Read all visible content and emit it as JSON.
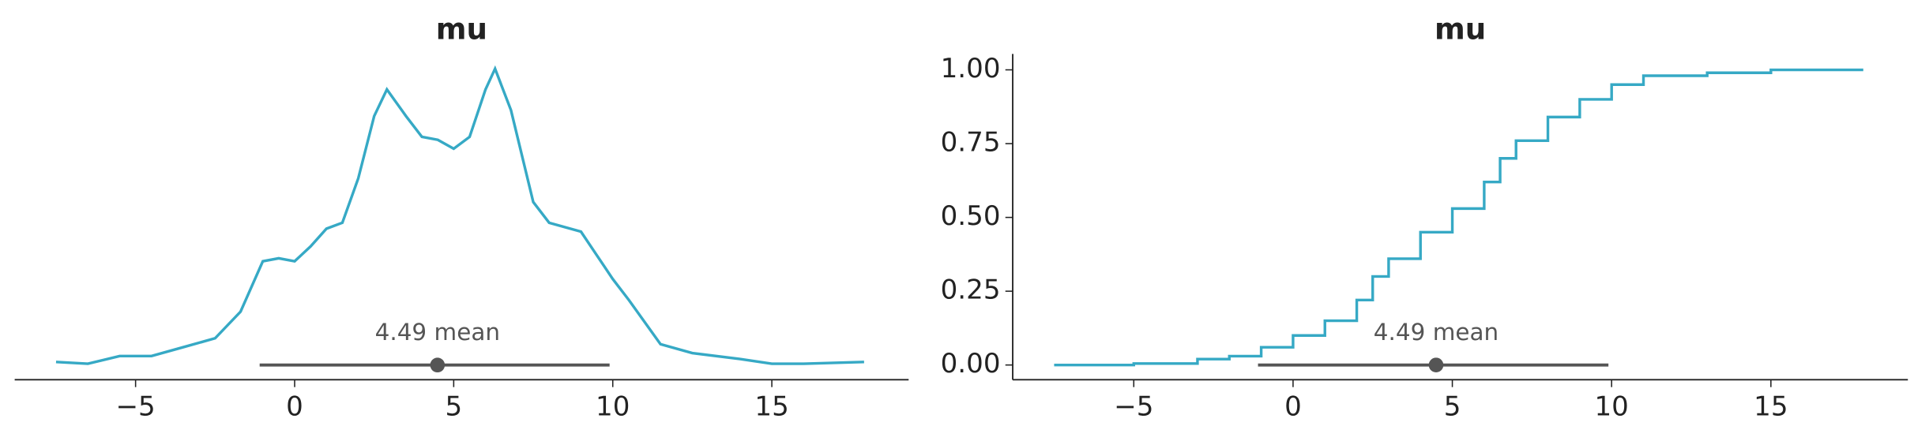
{
  "chart_data": [
    {
      "type": "kde",
      "title": "mu",
      "color": "#36a9c5",
      "x": [
        -7.5,
        -6.5,
        -5.5,
        -4.5,
        -3.5,
        -2.5,
        -1.7,
        -1,
        -0.5,
        0,
        0.5,
        1,
        1.5,
        2,
        2.5,
        2.9,
        3.5,
        4,
        4.5,
        5,
        5.5,
        6,
        6.3,
        6.8,
        7.5,
        8,
        9,
        9.5,
        10,
        10.5,
        11.5,
        12.5,
        14,
        15,
        16,
        17.9
      ],
      "values": [
        0.001,
        0.0004,
        0.003,
        0.003,
        0.006,
        0.009,
        0.018,
        0.035,
        0.036,
        0.035,
        0.04,
        0.046,
        0.048,
        0.063,
        0.084,
        0.093,
        0.084,
        0.077,
        0.076,
        0.073,
        0.077,
        0.093,
        0.1,
        0.086,
        0.055,
        0.048,
        0.045,
        0.037,
        0.029,
        0.022,
        0.007,
        0.004,
        0.002,
        0.0004,
        0.0004,
        0.001
      ],
      "xlim": [
        -8.8,
        19.3
      ],
      "ylim": [
        -0.005,
        0.105
      ],
      "xticks": [
        {
          "value": -5,
          "label": "−5"
        },
        0,
        5,
        10,
        15
      ],
      "point_estimate": {
        "value": 4.49,
        "label": "4.49 mean"
      },
      "hdi": [
        -1.1,
        9.9
      ]
    },
    {
      "type": "ecdf",
      "title": "mu",
      "color": "#36a9c5",
      "x": [
        -7.5,
        -5,
        -3,
        -2,
        -1,
        0,
        1,
        2,
        2.5,
        3,
        4,
        5,
        6,
        6.5,
        7,
        8,
        9,
        10,
        11,
        13,
        15,
        17.9
      ],
      "values": [
        0,
        0.005,
        0.02,
        0.03,
        0.06,
        0.1,
        0.15,
        0.22,
        0.3,
        0.36,
        0.45,
        0.53,
        0.62,
        0.7,
        0.76,
        0.84,
        0.9,
        0.95,
        0.98,
        0.99,
        1.0,
        1.0
      ],
      "xlim": [
        -8.8,
        19.3
      ],
      "ylim": [
        -0.05,
        1.054
      ],
      "xticks": [
        {
          "value": -5,
          "label": "−5"
        },
        0,
        5,
        10,
        15
      ],
      "yticks": [
        {
          "value": 0,
          "label": "0.00"
        },
        {
          "value": 0.25,
          "label": "0.25"
        },
        {
          "value": 0.5,
          "label": "0.50"
        },
        {
          "value": 0.75,
          "label": "0.75"
        },
        {
          "value": 1,
          "label": "1.00"
        }
      ],
      "point_estimate": {
        "value": 4.49,
        "label": "4.49 mean"
      },
      "hdi": [
        -1.1,
        9.9
      ]
    }
  ]
}
